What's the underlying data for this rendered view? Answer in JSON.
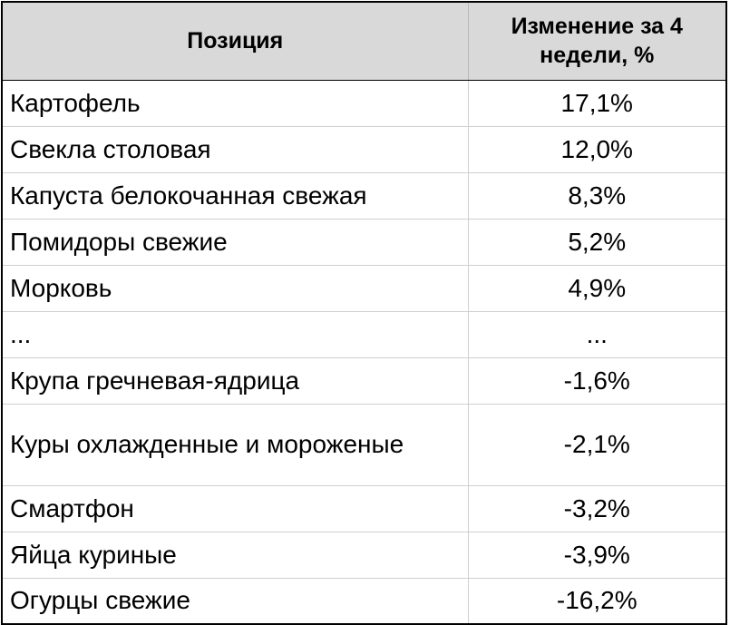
{
  "table": {
    "headers": {
      "position": "Позиция",
      "change": "Изменение за 4 недели, %"
    },
    "rows": [
      {
        "name": "Картофель",
        "value": "17,1%"
      },
      {
        "name": "Свекла столовая",
        "value": "12,0%"
      },
      {
        "name": "Капуста белокочанная свежая",
        "value": "8,3%"
      },
      {
        "name": "Помидоры свежие",
        "value": "5,2%"
      },
      {
        "name": "Морковь",
        "value": "4,9%"
      },
      {
        "name": "...",
        "value": "..."
      },
      {
        "name": "Крупа гречневая-ядрица",
        "value": "-1,6%"
      },
      {
        "name": "Куры охлажденные и мороженые",
        "value": "-2,1%"
      },
      {
        "name": "Смартфон",
        "value": "-3,2%"
      },
      {
        "name": "Яйца куриные",
        "value": "-3,9%"
      },
      {
        "name": "Огурцы свежие",
        "value": "-16,2%"
      }
    ]
  }
}
